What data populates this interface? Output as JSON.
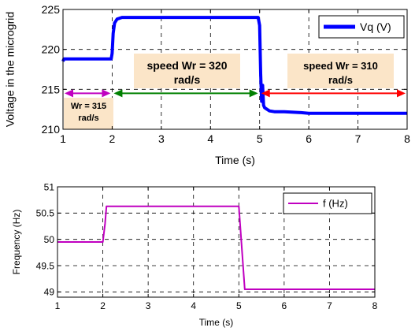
{
  "chart_data": [
    {
      "type": "line",
      "xlabel": "Time (s)",
      "ylabel": "Voltage in the microgrid",
      "xlim": [
        1,
        8
      ],
      "ylim": [
        210,
        225
      ],
      "xticks": [
        1,
        2,
        3,
        4,
        5,
        6,
        7,
        8
      ],
      "yticks": [
        210,
        215,
        220,
        225
      ],
      "grid": true,
      "legend_position": "top-right",
      "series": [
        {
          "name": "Vq (V)",
          "color": "#0000ff",
          "x": [
            1,
            1.02,
            1.98,
            2.0,
            2.02,
            2.05,
            2.1,
            2.2,
            4.97,
            5.0,
            5.02,
            5.04,
            5.06,
            5.08,
            5.1,
            5.15,
            5.2,
            5.3,
            5.5,
            5.8,
            6.0,
            8.0
          ],
          "y": [
            218.5,
            218.8,
            218.8,
            219.5,
            222.0,
            223.3,
            223.8,
            224.0,
            224.0,
            223.0,
            217.0,
            213.5,
            215.5,
            213.0,
            212.7,
            212.5,
            212.3,
            212.2,
            212.2,
            212.1,
            212.0,
            212.0
          ]
        }
      ],
      "annotations": [
        {
          "text": "Wr = 315 rad/s",
          "x_start": 1,
          "x_end": 2,
          "arrow_y": 214.5,
          "arrow_color": "#c000c0"
        },
        {
          "text": "speed Wr = 320 rad/s",
          "x_start": 2,
          "x_end": 5,
          "arrow_y": 214.5,
          "arrow_color": "#008000"
        },
        {
          "text": "speed Wr = 310 rad/s",
          "x_start": 5,
          "x_end": 8,
          "arrow_y": 214.5,
          "arrow_color": "#ff0000"
        }
      ]
    },
    {
      "type": "line",
      "xlabel": "Time (s)",
      "ylabel": "Frequency (Hz)",
      "xlim": [
        1,
        8
      ],
      "ylim": [
        48.9,
        51
      ],
      "xticks": [
        1,
        2,
        3,
        4,
        5,
        6,
        7,
        8
      ],
      "yticks": [
        49,
        49.5,
        50,
        50.5,
        51
      ],
      "grid": true,
      "legend_position": "top-right",
      "series": [
        {
          "name": "f (Hz)",
          "color": "#c000c0",
          "x": [
            1,
            2.0,
            2.05,
            2.08,
            5.0,
            5.13,
            8.0
          ],
          "y": [
            49.95,
            49.95,
            50.3,
            50.63,
            50.63,
            49.05,
            49.05
          ]
        }
      ]
    }
  ]
}
